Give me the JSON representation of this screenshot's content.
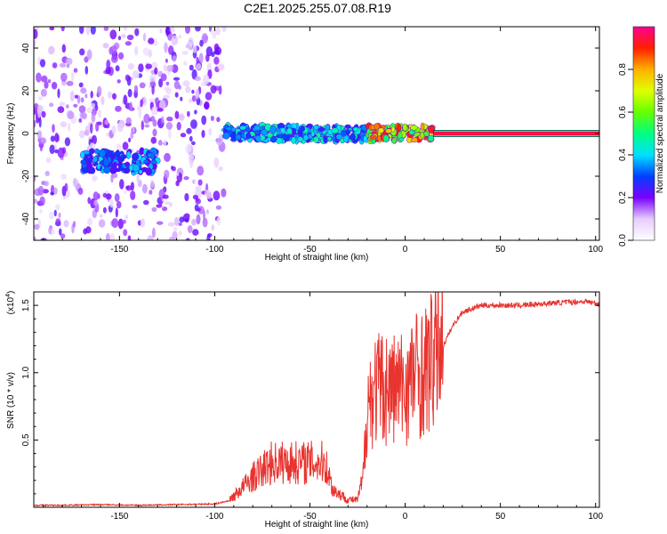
{
  "title": "C2E1.2025.255.07.08.R19",
  "chart_data": [
    {
      "type": "heatmap",
      "name": "spectrogram",
      "xlabel": "Height of straight line (km)",
      "ylabel": "Frequency (Hz)",
      "xlim": [
        -195,
        102
      ],
      "ylim": [
        -50,
        50
      ],
      "xticks": [
        -150,
        -100,
        -50,
        0,
        50,
        100
      ],
      "xtick_labels": [
        "-150",
        "-100",
        "-50",
        "0",
        "50",
        "100"
      ],
      "yticks": [
        -40,
        -20,
        0,
        20,
        40
      ],
      "ytick_labels": [
        "-40",
        "-20",
        "0",
        "20",
        "40"
      ],
      "regions": [
        {
          "desc": "diffuse noise",
          "x_range": [
            -195,
            -95
          ],
          "freq_range": [
            -50,
            50
          ],
          "amplitude": 0.15
        },
        {
          "desc": "cluster",
          "x_range": [
            -170,
            -130
          ],
          "freq_center": -13,
          "amplitude": 0.35
        },
        {
          "desc": "ridge",
          "x_range": [
            -95,
            -20
          ],
          "freq_center": 0,
          "amplitude": 0.4
        },
        {
          "desc": "ridge",
          "x_range": [
            -20,
            15
          ],
          "freq_center": 0,
          "amplitude": 0.8
        },
        {
          "desc": "steady line",
          "x_range": [
            15,
            102
          ],
          "freq_center": 0,
          "amplitude": 0.95
        }
      ]
    },
    {
      "type": "colorbar",
      "label": "Normalized spectral amplitude",
      "range": [
        0.0,
        1.0
      ],
      "ticks": [
        0.0,
        0.2,
        0.4,
        0.6,
        0.8
      ],
      "tick_labels": [
        "0.0",
        "0.2",
        "0.4",
        "0.6",
        "0.8"
      ]
    },
    {
      "type": "line",
      "name": "snr",
      "xlabel": "Height of straight line (km)",
      "ylabel": "SNR (10 * v/v)",
      "scale_label": "(x10",
      "scale_exp": "4",
      "scale_close": ")",
      "xlim": [
        -195,
        102
      ],
      "ylim": [
        0,
        1.6
      ],
      "xticks": [
        -150,
        -100,
        -50,
        0,
        50,
        100
      ],
      "xtick_labels": [
        "-150",
        "-100",
        "-50",
        "0",
        "50",
        "100"
      ],
      "yticks": [
        0.5,
        1.0,
        1.5
      ],
      "ytick_labels": [
        "0.5",
        "1.0",
        "1.5"
      ],
      "color": "#e8332e",
      "series": [
        {
          "name": "SNR",
          "x": [
            -195,
            -180,
            -160,
            -140,
            -120,
            -100,
            -92,
            -88,
            -80,
            -75,
            -70,
            -60,
            -50,
            -42,
            -38,
            -30,
            -25,
            -22,
            -20,
            -15,
            -10,
            -5,
            0,
            5,
            10,
            15,
            20,
            25,
            30,
            40,
            60,
            80,
            95,
            102
          ],
          "values": [
            0.015,
            0.015,
            0.02,
            0.015,
            0.02,
            0.025,
            0.05,
            0.1,
            0.2,
            0.25,
            0.3,
            0.3,
            0.3,
            0.3,
            0.12,
            0.05,
            0.05,
            0.2,
            0.7,
            0.8,
            0.8,
            0.8,
            0.8,
            0.9,
            0.9,
            1.0,
            1.2,
            1.35,
            1.45,
            1.5,
            1.5,
            1.52,
            1.53,
            1.51
          ]
        }
      ]
    }
  ]
}
